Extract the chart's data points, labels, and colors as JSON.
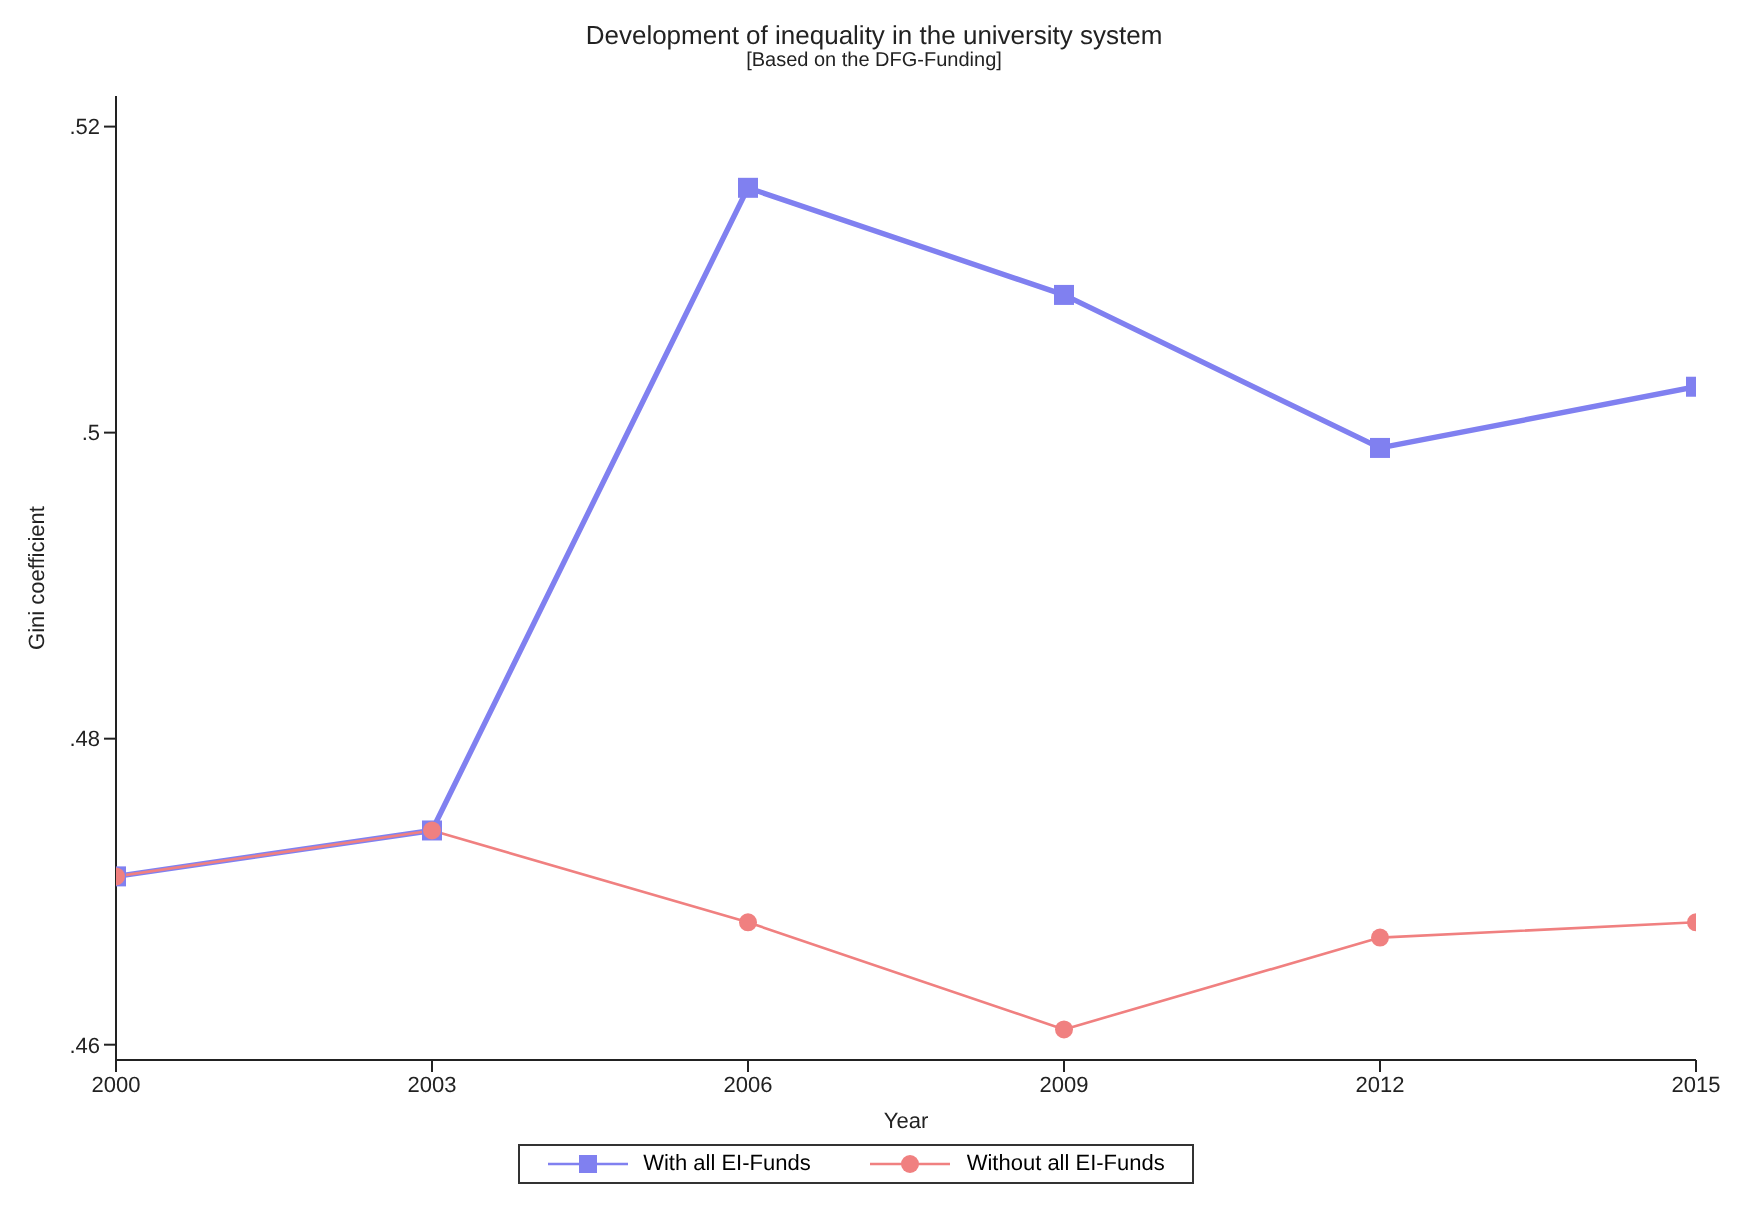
{
  "chart_data": {
    "type": "line",
    "title": "Development of inequality in the university system",
    "subtitle": "[Based on the DFG-Funding]",
    "xlabel": "Year",
    "ylabel": "Gini coefficient",
    "x": [
      2000,
      2003,
      2006,
      2009,
      2012,
      2015
    ],
    "series": [
      {
        "name": "With all EI-Funds",
        "color": "#8080f0",
        "marker": "square",
        "values": [
          0.471,
          0.474,
          0.516,
          0.509,
          0.499,
          0.503
        ]
      },
      {
        "name": "Without all EI-Funds",
        "color": "#f08080",
        "marker": "circle",
        "values": [
          0.471,
          0.474,
          0.468,
          0.461,
          0.467,
          0.468
        ]
      }
    ],
    "xlim": [
      2000,
      2015
    ],
    "xticks": [
      2000,
      2003,
      2006,
      2009,
      2012,
      2015
    ],
    "ylim": [
      0.459,
      0.522
    ],
    "yticks": [
      {
        "value": 0.46,
        "label": ".46"
      },
      {
        "value": 0.48,
        "label": ".48"
      },
      {
        "value": 0.5,
        "label": ".5"
      },
      {
        "value": 0.52,
        "label": ".52"
      }
    ],
    "grid": false,
    "legend": "bottom",
    "line_style": "solid"
  }
}
